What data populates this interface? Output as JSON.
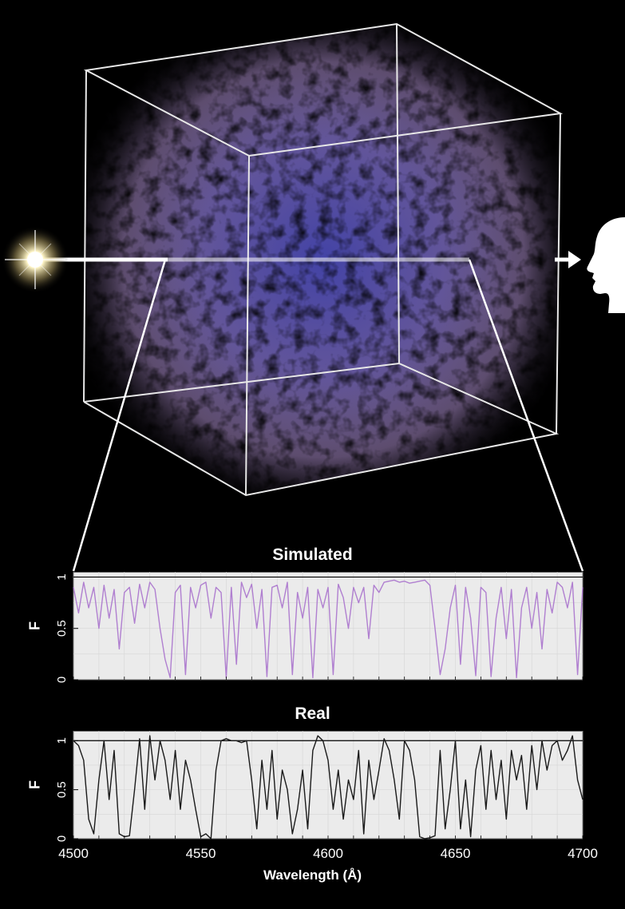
{
  "colors": {
    "background": "#000000",
    "cube_edge": "#e8e8e8",
    "gas_purple": "#a98bc8",
    "gas_blue": "#4a4ab8",
    "plot_bg": "#ebebeb",
    "sim_line": "#b07fd0",
    "real_line": "#1a1a1a",
    "arrow": "#ffffff"
  },
  "illustration": {
    "source_icon": "quasar-star-icon",
    "observer_icon": "observer-head-icon",
    "sightline": "light ray through simulation cube"
  },
  "chart_data": [
    {
      "type": "line",
      "title": "Simulated",
      "ylabel": "F",
      "xlim": [
        4500,
        4700
      ],
      "ylim": [
        0,
        1.05
      ],
      "yticks": [
        0,
        0.5,
        1
      ],
      "reference_line": 1,
      "grid": true,
      "series": [
        {
          "color": "#b07fd0",
          "x": [
            4500,
            4502,
            4504,
            4506,
            4508,
            4510,
            4512,
            4514,
            4516,
            4518,
            4520,
            4522,
            4524,
            4526,
            4528,
            4530,
            4532,
            4534,
            4536,
            4538,
            4540,
            4542,
            4544,
            4546,
            4548,
            4550,
            4552,
            4554,
            4556,
            4558,
            4560,
            4562,
            4564,
            4566,
            4568,
            4570,
            4572,
            4574,
            4576,
            4578,
            4580,
            4582,
            4584,
            4586,
            4588,
            4590,
            4592,
            4594,
            4596,
            4598,
            4600,
            4602,
            4604,
            4606,
            4608,
            4610,
            4612,
            4614,
            4616,
            4618,
            4620,
            4622,
            4624,
            4626,
            4628,
            4630,
            4632,
            4634,
            4636,
            4638,
            4640,
            4642,
            4644,
            4646,
            4648,
            4650,
            4652,
            4654,
            4656,
            4658,
            4660,
            4662,
            4664,
            4666,
            4668,
            4670,
            4672,
            4674,
            4676,
            4678,
            4680,
            4682,
            4684,
            4686,
            4688,
            4690,
            4692,
            4694,
            4696,
            4698,
            4700
          ],
          "y": [
            0.9,
            0.65,
            0.95,
            0.7,
            0.9,
            0.5,
            0.92,
            0.6,
            0.88,
            0.3,
            0.85,
            0.9,
            0.55,
            0.93,
            0.7,
            0.95,
            0.88,
            0.5,
            0.2,
            0.02,
            0.85,
            0.92,
            0.05,
            0.9,
            0.7,
            0.92,
            0.95,
            0.6,
            0.9,
            0.85,
            0.02,
            0.9,
            0.15,
            0.95,
            0.8,
            0.93,
            0.5,
            0.88,
            0.03,
            0.9,
            0.92,
            0.7,
            0.95,
            0.05,
            0.85,
            0.6,
            0.9,
            0.02,
            0.88,
            0.7,
            0.9,
            0.05,
            0.93,
            0.8,
            0.5,
            0.9,
            0.75,
            0.9,
            0.4,
            0.92,
            0.85,
            0.95,
            0.96,
            0.97,
            0.95,
            0.96,
            0.94,
            0.95,
            0.96,
            0.97,
            0.92,
            0.5,
            0.05,
            0.3,
            0.7,
            0.92,
            0.15,
            0.9,
            0.6,
            0.04,
            0.9,
            0.85,
            0.03,
            0.6,
            0.9,
            0.4,
            0.88,
            0.02,
            0.7,
            0.9,
            0.5,
            0.85,
            0.3,
            0.88,
            0.65,
            0.95,
            0.9,
            0.7,
            0.95,
            0.05,
            0.9
          ]
        }
      ]
    },
    {
      "type": "line",
      "title": "Real",
      "xlabel": "Wavelength (Å)",
      "ylabel": "F",
      "xlim": [
        4500,
        4700
      ],
      "ylim": [
        0,
        1.1
      ],
      "xticks": [
        4500,
        4550,
        4600,
        4650,
        4700
      ],
      "yticks": [
        0,
        0.5,
        1
      ],
      "reference_line": 1,
      "grid": true,
      "series": [
        {
          "color": "#1a1a1a",
          "x": [
            4500,
            4502,
            4504,
            4506,
            4508,
            4510,
            4512,
            4514,
            4516,
            4518,
            4520,
            4522,
            4524,
            4526,
            4528,
            4530,
            4532,
            4534,
            4536,
            4538,
            4540,
            4542,
            4544,
            4546,
            4548,
            4550,
            4552,
            4554,
            4556,
            4558,
            4560,
            4562,
            4564,
            4566,
            4568,
            4570,
            4572,
            4574,
            4576,
            4578,
            4580,
            4582,
            4584,
            4586,
            4588,
            4590,
            4592,
            4594,
            4596,
            4598,
            4600,
            4602,
            4604,
            4606,
            4608,
            4610,
            4612,
            4614,
            4616,
            4618,
            4620,
            4622,
            4624,
            4626,
            4628,
            4630,
            4632,
            4634,
            4636,
            4638,
            4640,
            4642,
            4644,
            4646,
            4648,
            4650,
            4652,
            4654,
            4656,
            4658,
            4660,
            4662,
            4664,
            4666,
            4668,
            4670,
            4672,
            4674,
            4676,
            4678,
            4680,
            4682,
            4684,
            4686,
            4688,
            4690,
            4692,
            4694,
            4696,
            4698,
            4700
          ],
          "y": [
            1.0,
            0.95,
            0.8,
            0.2,
            0.05,
            0.6,
            1.0,
            0.4,
            0.9,
            0.05,
            0.02,
            0.03,
            0.5,
            1.02,
            0.3,
            1.05,
            0.6,
            1.0,
            0.8,
            0.4,
            0.9,
            0.3,
            0.8,
            0.6,
            0.3,
            0.02,
            0.05,
            0.0,
            0.7,
            1.0,
            1.02,
            1.0,
            1.0,
            0.98,
            1.0,
            0.6,
            0.1,
            0.8,
            0.3,
            0.9,
            0.2,
            0.7,
            0.5,
            0.05,
            0.3,
            0.7,
            0.1,
            0.9,
            1.05,
            1.0,
            0.8,
            0.3,
            0.7,
            0.2,
            0.6,
            0.4,
            0.9,
            0.05,
            0.8,
            0.4,
            0.7,
            1.02,
            0.9,
            0.6,
            0.2,
            1.0,
            0.9,
            0.6,
            0.02,
            0.0,
            0.01,
            0.03,
            0.9,
            0.1,
            0.5,
            1.0,
            0.1,
            0.6,
            0.02,
            0.7,
            0.95,
            0.3,
            0.9,
            0.4,
            0.8,
            0.2,
            0.9,
            0.6,
            0.85,
            0.3,
            0.95,
            0.5,
            1.0,
            0.7,
            0.95,
            1.0,
            0.8,
            0.9,
            1.05,
            0.6,
            0.4
          ]
        }
      ]
    }
  ]
}
